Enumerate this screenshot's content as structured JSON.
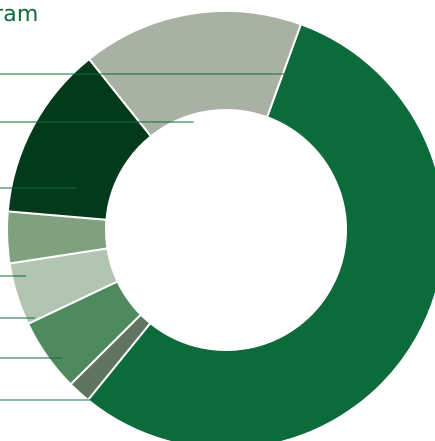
{
  "chart_data": {
    "type": "pie",
    "subtype": "donut",
    "title_visible": "ram",
    "slices": [
      {
        "value": 55.3,
        "color": "#0d6a3a"
      },
      {
        "value": 1.7,
        "color": "#5f7561"
      },
      {
        "value": 5.4,
        "color": "#4f8a5f"
      },
      {
        "value": 4.6,
        "color": "#b2c4b2"
      },
      {
        "value": 3.8,
        "color": "#7fa17d"
      },
      {
        "value": 12.9,
        "color": "#033a1c"
      },
      {
        "value": 16.3,
        "color": "#a8b1a4"
      }
    ],
    "colors": {
      "title": "#0d6a3a",
      "leader_lines": "#0d6a3a",
      "slice_border": "#ffffff"
    }
  }
}
